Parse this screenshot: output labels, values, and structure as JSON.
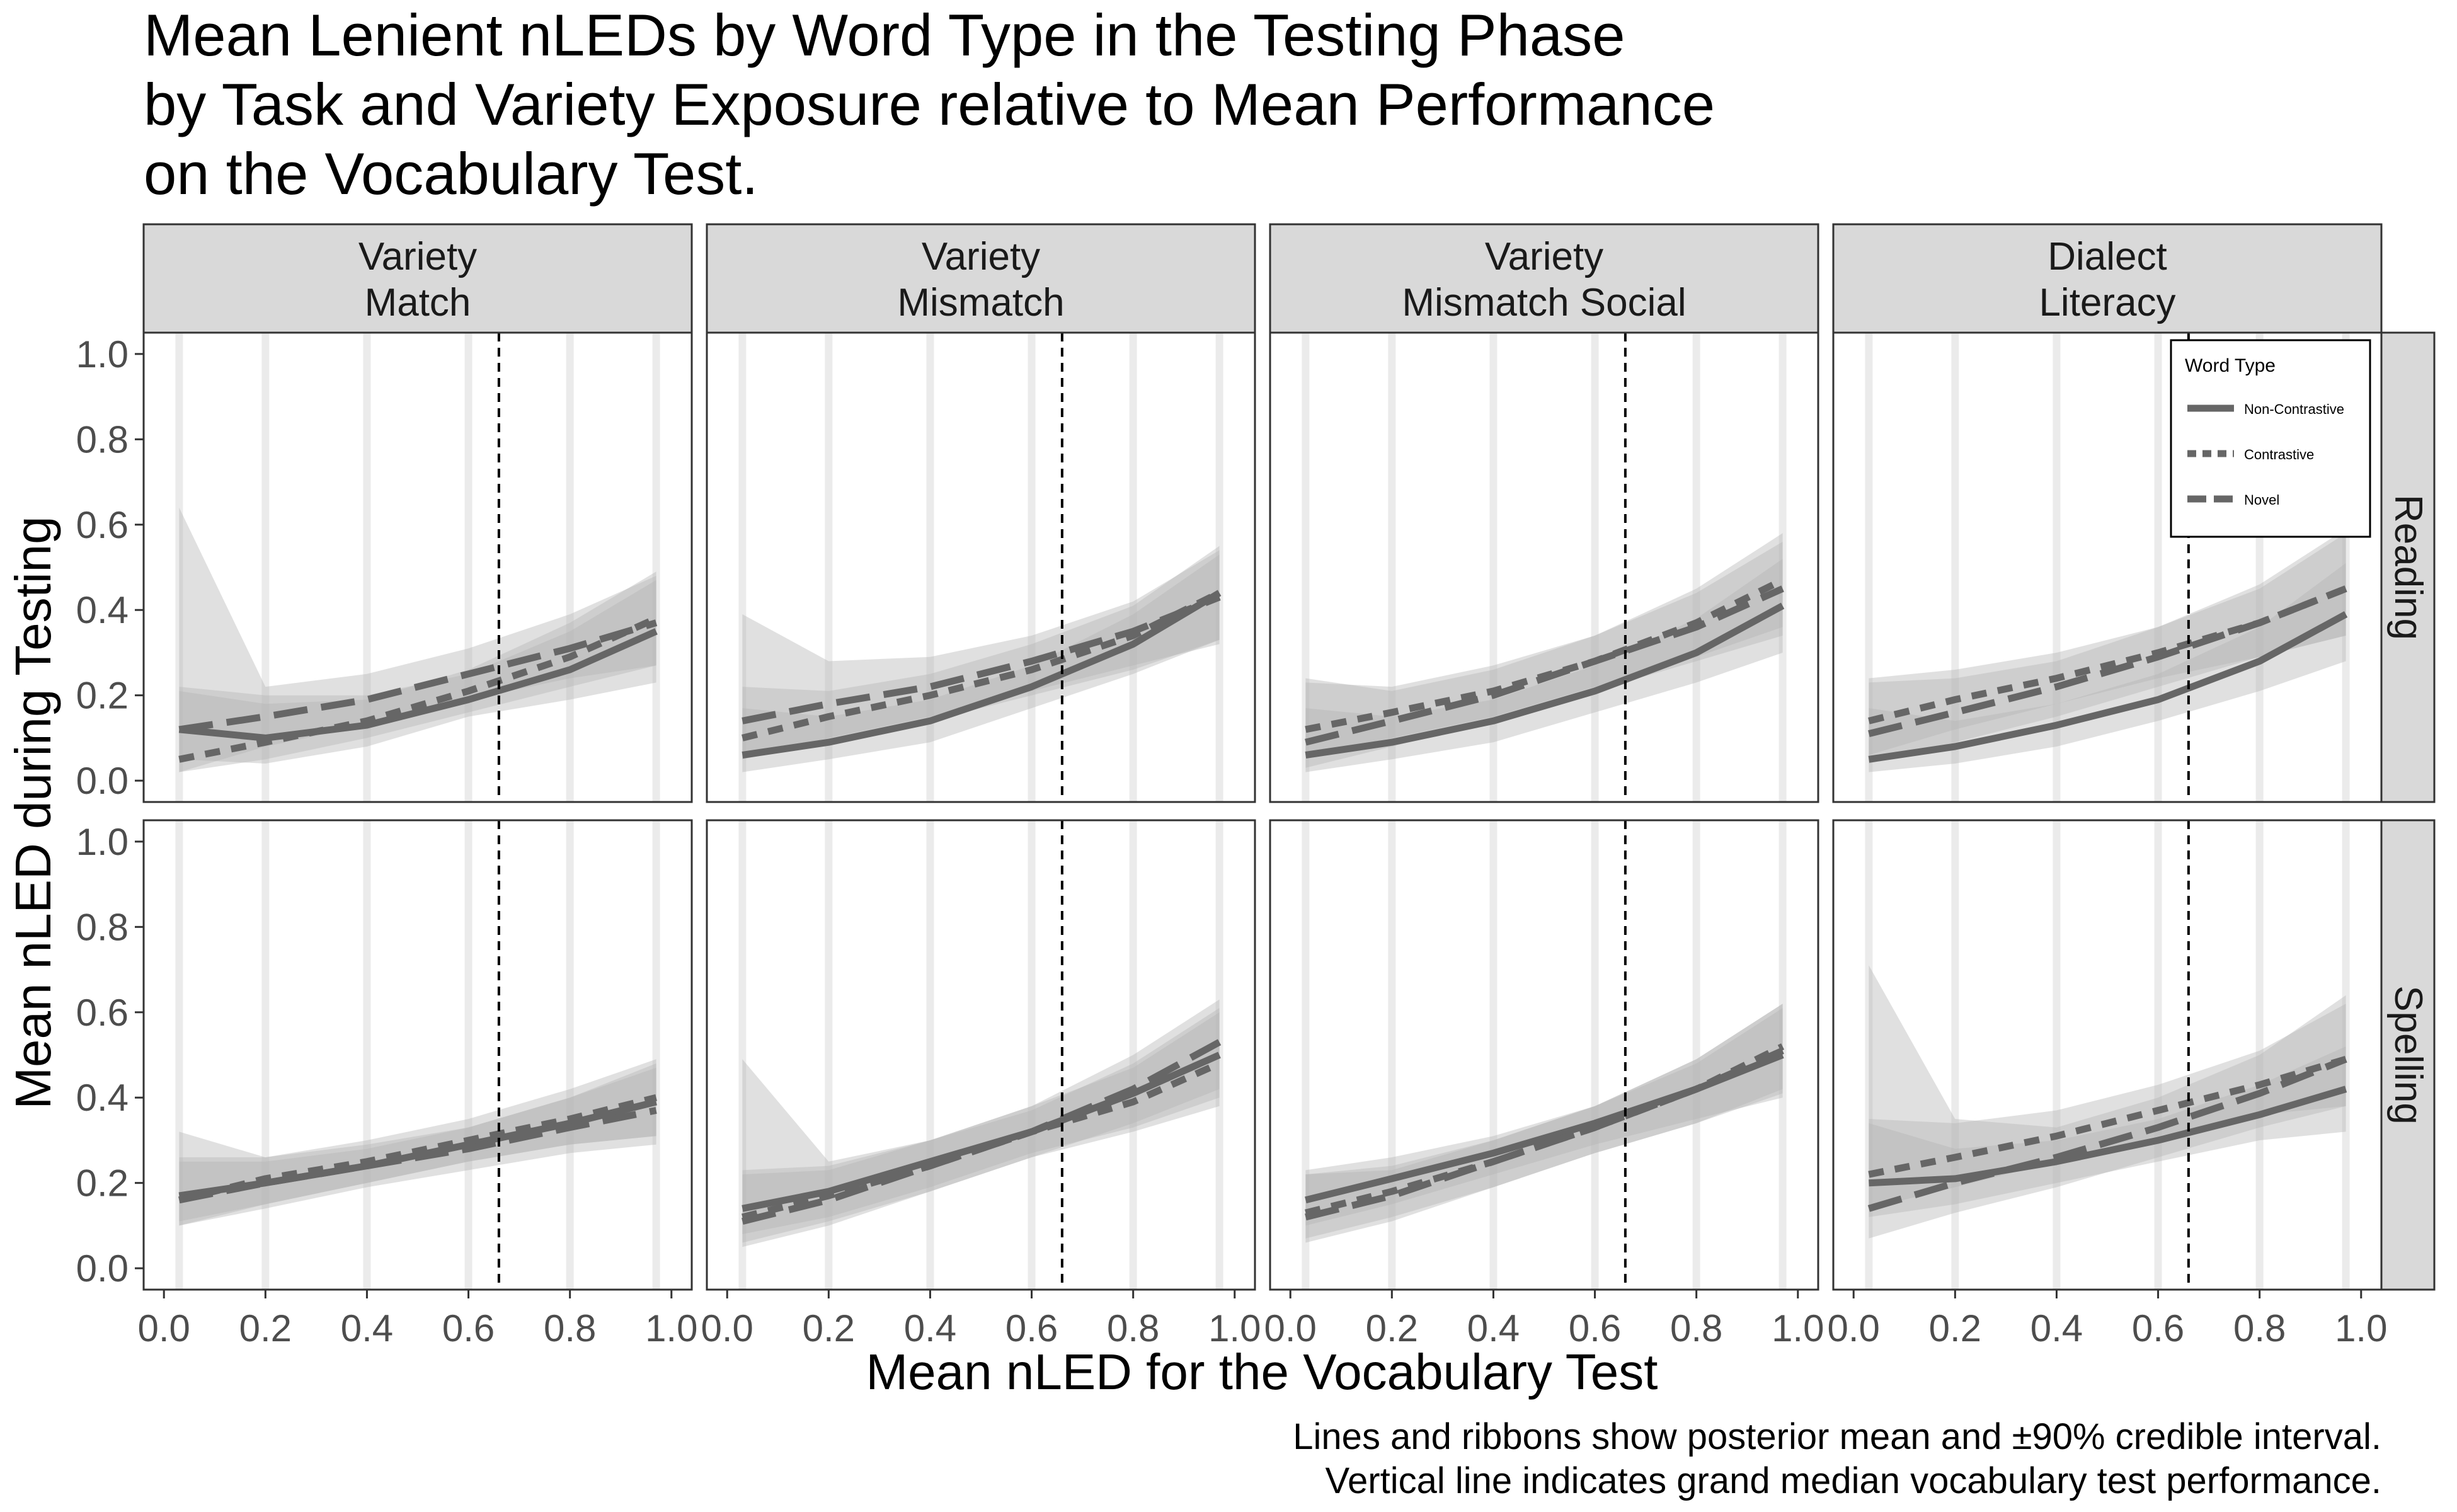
{
  "chart_data": {
    "type": "line",
    "title_lines": [
      "Mean Lenient nLEDs by Word Type in the Testing Phase",
      "by Task and Variety Exposure relative to Mean Performance",
      "on the Vocabulary Test."
    ],
    "xlabel": "Mean nLED for the Vocabulary Test",
    "ylabel": "Mean nLED during Testing",
    "caption_lines": [
      "Lines and ribbons show posterior mean and ±90% credible interval.",
      "Vertical line indicates grand median vocabulary test performance."
    ],
    "xlim": [
      -0.04,
      1.04
    ],
    "ylim": [
      -0.05,
      1.05
    ],
    "x_ticks": [
      0.0,
      0.2,
      0.4,
      0.6,
      0.8,
      1.0
    ],
    "x_tick_labels": [
      "0.0",
      "0.2",
      "0.4",
      "0.6",
      "0.8",
      "1.0"
    ],
    "y_ticks": [
      0.0,
      0.2,
      0.4,
      0.6,
      0.8,
      1.0
    ],
    "y_tick_labels": [
      "0.0",
      "0.2",
      "0.4",
      "0.6",
      "0.8",
      "1.0"
    ],
    "vocab_x": [
      0.03,
      0.2,
      0.4,
      0.6,
      0.8,
      0.97
    ],
    "median_vline": 0.66,
    "columns": [
      {
        "line1": "Variety",
        "line2": "Match"
      },
      {
        "line1": "Variety",
        "line2": "Mismatch"
      },
      {
        "line1": "Variety",
        "line2": "Mismatch Social"
      },
      {
        "line1": "Dialect",
        "line2": "Literacy"
      }
    ],
    "rows": [
      "Reading",
      "Spelling"
    ],
    "legend": {
      "title": "Word Type",
      "placement": "top-right of Reading / Dialect Literacy panel",
      "entries": [
        "Non-Contrastive",
        "Contrastive",
        "Novel"
      ]
    },
    "series_style": {
      "Non-Contrastive": "solid",
      "Contrastive": "dotted",
      "Novel": "dashed"
    },
    "line_color": "#666666",
    "ribbon_color": "#b4b4b4",
    "strip_fill": "#d9d9d9",
    "grid_color": "#ebebeb",
    "panels": [
      {
        "row": "Reading",
        "column": "Variety Match",
        "series": [
          {
            "name": "Non-Contrastive",
            "x": [
              0.03,
              0.2,
              0.4,
              0.6,
              0.8,
              0.97
            ],
            "y": [
              0.12,
              0.1,
              0.13,
              0.19,
              0.26,
              0.35
            ],
            "lower": [
              0.05,
              0.04,
              0.08,
              0.15,
              0.19,
              0.23
            ],
            "upper": [
              0.22,
              0.2,
              0.2,
              0.25,
              0.35,
              0.47
            ]
          },
          {
            "name": "Contrastive",
            "x": [
              0.03,
              0.2,
              0.4,
              0.6,
              0.8,
              0.97
            ],
            "y": [
              0.05,
              0.09,
              0.14,
              0.21,
              0.29,
              0.38
            ],
            "lower": [
              0.02,
              0.05,
              0.1,
              0.16,
              0.22,
              0.27
            ],
            "upper": [
              0.21,
              0.18,
              0.19,
              0.26,
              0.37,
              0.49
            ]
          },
          {
            "name": "Novel",
            "x": [
              0.03,
              0.2,
              0.4,
              0.6,
              0.8,
              0.97
            ],
            "y": [
              0.12,
              0.15,
              0.19,
              0.25,
              0.31,
              0.37
            ],
            "lower": [
              0.02,
              0.08,
              0.13,
              0.19,
              0.24,
              0.27
            ],
            "upper": [
              0.64,
              0.22,
              0.25,
              0.31,
              0.39,
              0.48
            ]
          }
        ]
      },
      {
        "row": "Reading",
        "column": "Variety Mismatch",
        "series": [
          {
            "name": "Non-Contrastive",
            "x": [
              0.03,
              0.2,
              0.4,
              0.6,
              0.8,
              0.97
            ],
            "y": [
              0.06,
              0.09,
              0.14,
              0.22,
              0.32,
              0.44
            ],
            "lower": [
              0.02,
              0.05,
              0.09,
              0.17,
              0.25,
              0.33
            ],
            "upper": [
              0.17,
              0.15,
              0.19,
              0.27,
              0.39,
              0.53
            ]
          },
          {
            "name": "Contrastive",
            "x": [
              0.03,
              0.2,
              0.4,
              0.6,
              0.8,
              0.97
            ],
            "y": [
              0.1,
              0.15,
              0.2,
              0.26,
              0.34,
              0.44
            ],
            "lower": [
              0.05,
              0.09,
              0.14,
              0.2,
              0.26,
              0.33
            ],
            "upper": [
              0.22,
              0.21,
              0.25,
              0.32,
              0.41,
              0.55
            ]
          },
          {
            "name": "Novel",
            "x": [
              0.03,
              0.2,
              0.4,
              0.6,
              0.8,
              0.97
            ],
            "y": [
              0.14,
              0.18,
              0.22,
              0.28,
              0.35,
              0.43
            ],
            "lower": [
              0.05,
              0.1,
              0.15,
              0.21,
              0.27,
              0.32
            ],
            "upper": [
              0.39,
              0.28,
              0.29,
              0.34,
              0.42,
              0.54
            ]
          }
        ]
      },
      {
        "row": "Reading",
        "column": "Variety Mismatch Social",
        "series": [
          {
            "name": "Non-Contrastive",
            "x": [
              0.03,
              0.2,
              0.4,
              0.6,
              0.8,
              0.97
            ],
            "y": [
              0.06,
              0.09,
              0.14,
              0.21,
              0.3,
              0.41
            ],
            "lower": [
              0.02,
              0.05,
              0.09,
              0.16,
              0.23,
              0.3
            ],
            "upper": [
              0.17,
              0.15,
              0.19,
              0.27,
              0.38,
              0.52
            ]
          },
          {
            "name": "Contrastive",
            "x": [
              0.03,
              0.2,
              0.4,
              0.6,
              0.8,
              0.97
            ],
            "y": [
              0.12,
              0.16,
              0.21,
              0.28,
              0.37,
              0.47
            ],
            "lower": [
              0.06,
              0.1,
              0.15,
              0.22,
              0.29,
              0.36
            ],
            "upper": [
              0.23,
              0.22,
              0.27,
              0.34,
              0.45,
              0.58
            ]
          },
          {
            "name": "Novel",
            "x": [
              0.03,
              0.2,
              0.4,
              0.6,
              0.8,
              0.97
            ],
            "y": [
              0.09,
              0.14,
              0.2,
              0.28,
              0.36,
              0.45
            ],
            "lower": [
              0.03,
              0.08,
              0.14,
              0.21,
              0.28,
              0.34
            ],
            "upper": [
              0.24,
              0.21,
              0.26,
              0.34,
              0.44,
              0.56
            ]
          }
        ]
      },
      {
        "row": "Reading",
        "column": "Dialect Literacy",
        "series": [
          {
            "name": "Non-Contrastive",
            "x": [
              0.03,
              0.2,
              0.4,
              0.6,
              0.8,
              0.97
            ],
            "y": [
              0.05,
              0.08,
              0.13,
              0.19,
              0.28,
              0.39
            ],
            "lower": [
              0.02,
              0.04,
              0.08,
              0.14,
              0.21,
              0.28
            ],
            "upper": [
              0.17,
              0.14,
              0.18,
              0.25,
              0.36,
              0.51
            ]
          },
          {
            "name": "Contrastive",
            "x": [
              0.03,
              0.2,
              0.4,
              0.6,
              0.8,
              0.97
            ],
            "y": [
              0.14,
              0.19,
              0.24,
              0.3,
              0.37,
              0.45
            ],
            "lower": [
              0.06,
              0.12,
              0.18,
              0.24,
              0.29,
              0.34
            ],
            "upper": [
              0.24,
              0.26,
              0.3,
              0.36,
              0.45,
              0.58
            ]
          },
          {
            "name": "Novel",
            "x": [
              0.03,
              0.2,
              0.4,
              0.6,
              0.8,
              0.97
            ],
            "y": [
              0.11,
              0.16,
              0.22,
              0.29,
              0.37,
              0.45
            ],
            "lower": [
              0.04,
              0.09,
              0.15,
              0.22,
              0.29,
              0.34
            ],
            "upper": [
              0.23,
              0.24,
              0.28,
              0.36,
              0.46,
              0.59
            ]
          }
        ]
      },
      {
        "row": "Spelling",
        "column": "Variety Match",
        "series": [
          {
            "name": "Non-Contrastive",
            "x": [
              0.03,
              0.2,
              0.4,
              0.6,
              0.8,
              0.97
            ],
            "y": [
              0.17,
              0.2,
              0.24,
              0.29,
              0.34,
              0.39
            ],
            "lower": [
              0.11,
              0.15,
              0.2,
              0.25,
              0.29,
              0.31
            ],
            "upper": [
              0.25,
              0.25,
              0.28,
              0.33,
              0.4,
              0.48
            ]
          },
          {
            "name": "Contrastive",
            "x": [
              0.03,
              0.2,
              0.4,
              0.6,
              0.8,
              0.97
            ],
            "y": [
              0.16,
              0.21,
              0.25,
              0.3,
              0.35,
              0.4
            ],
            "lower": [
              0.1,
              0.15,
              0.2,
              0.25,
              0.29,
              0.31
            ],
            "upper": [
              0.26,
              0.26,
              0.3,
              0.35,
              0.42,
              0.49
            ]
          },
          {
            "name": "Novel",
            "x": [
              0.03,
              0.2,
              0.4,
              0.6,
              0.8,
              0.97
            ],
            "y": [
              0.16,
              0.2,
              0.24,
              0.28,
              0.33,
              0.37
            ],
            "lower": [
              0.1,
              0.14,
              0.19,
              0.23,
              0.27,
              0.29
            ],
            "upper": [
              0.32,
              0.26,
              0.29,
              0.33,
              0.4,
              0.47
            ]
          }
        ]
      },
      {
        "row": "Spelling",
        "column": "Variety Mismatch",
        "series": [
          {
            "name": "Non-Contrastive",
            "x": [
              0.03,
              0.2,
              0.4,
              0.6,
              0.8,
              0.97
            ],
            "y": [
              0.14,
              0.18,
              0.25,
              0.32,
              0.41,
              0.5
            ],
            "lower": [
              0.08,
              0.12,
              0.19,
              0.27,
              0.33,
              0.4
            ],
            "upper": [
              0.23,
              0.24,
              0.3,
              0.37,
              0.48,
              0.61
            ]
          },
          {
            "name": "Contrastive",
            "x": [
              0.03,
              0.2,
              0.4,
              0.6,
              0.8,
              0.97
            ],
            "y": [
              0.12,
              0.17,
              0.24,
              0.32,
              0.39,
              0.48
            ],
            "lower": [
              0.06,
              0.11,
              0.18,
              0.26,
              0.32,
              0.38
            ],
            "upper": [
              0.22,
              0.23,
              0.3,
              0.38,
              0.47,
              0.6
            ]
          },
          {
            "name": "Novel",
            "x": [
              0.03,
              0.2,
              0.4,
              0.6,
              0.8,
              0.97
            ],
            "y": [
              0.11,
              0.16,
              0.24,
              0.32,
              0.42,
              0.53
            ],
            "lower": [
              0.05,
              0.1,
              0.18,
              0.26,
              0.34,
              0.42
            ],
            "upper": [
              0.49,
              0.25,
              0.3,
              0.38,
              0.5,
              0.63
            ]
          }
        ]
      },
      {
        "row": "Spelling",
        "column": "Variety Mismatch Social",
        "series": [
          {
            "name": "Non-Contrastive",
            "x": [
              0.03,
              0.2,
              0.4,
              0.6,
              0.8,
              0.97
            ],
            "y": [
              0.16,
              0.21,
              0.27,
              0.34,
              0.42,
              0.5
            ],
            "lower": [
              0.1,
              0.15,
              0.22,
              0.29,
              0.35,
              0.4
            ],
            "upper": [
              0.23,
              0.26,
              0.31,
              0.38,
              0.48,
              0.61
            ]
          },
          {
            "name": "Contrastive",
            "x": [
              0.03,
              0.2,
              0.4,
              0.6,
              0.8,
              0.97
            ],
            "y": [
              0.13,
              0.18,
              0.25,
              0.33,
              0.42,
              0.52
            ],
            "lower": [
              0.07,
              0.12,
              0.19,
              0.27,
              0.34,
              0.42
            ],
            "upper": [
              0.22,
              0.24,
              0.3,
              0.38,
              0.49,
              0.62
            ]
          },
          {
            "name": "Novel",
            "x": [
              0.03,
              0.2,
              0.4,
              0.6,
              0.8,
              0.97
            ],
            "y": [
              0.12,
              0.17,
              0.25,
              0.33,
              0.42,
              0.51
            ],
            "lower": [
              0.06,
              0.11,
              0.19,
              0.27,
              0.34,
              0.41
            ],
            "upper": [
              0.22,
              0.23,
              0.3,
              0.38,
              0.49,
              0.62
            ]
          }
        ]
      },
      {
        "row": "Spelling",
        "column": "Dialect Literacy",
        "series": [
          {
            "name": "Non-Contrastive",
            "x": [
              0.03,
              0.2,
              0.4,
              0.6,
              0.8,
              0.97
            ],
            "y": [
              0.2,
              0.21,
              0.25,
              0.3,
              0.36,
              0.42
            ],
            "lower": [
              0.12,
              0.15,
              0.2,
              0.25,
              0.3,
              0.32
            ],
            "upper": [
              0.34,
              0.28,
              0.3,
              0.35,
              0.43,
              0.52
            ]
          },
          {
            "name": "Contrastive",
            "x": [
              0.03,
              0.2,
              0.4,
              0.6,
              0.8,
              0.97
            ],
            "y": [
              0.22,
              0.26,
              0.31,
              0.37,
              0.43,
              0.49
            ],
            "lower": [
              0.14,
              0.19,
              0.25,
              0.31,
              0.36,
              0.38
            ],
            "upper": [
              0.35,
              0.34,
              0.37,
              0.43,
              0.51,
              0.62
            ]
          },
          {
            "name": "Novel",
            "x": [
              0.03,
              0.2,
              0.4,
              0.6,
              0.8,
              0.97
            ],
            "y": [
              0.14,
              0.2,
              0.26,
              0.33,
              0.41,
              0.49
            ],
            "lower": [
              0.07,
              0.13,
              0.19,
              0.26,
              0.33,
              0.38
            ],
            "upper": [
              0.71,
              0.35,
              0.33,
              0.4,
              0.5,
              0.64
            ]
          }
        ]
      }
    ]
  }
}
